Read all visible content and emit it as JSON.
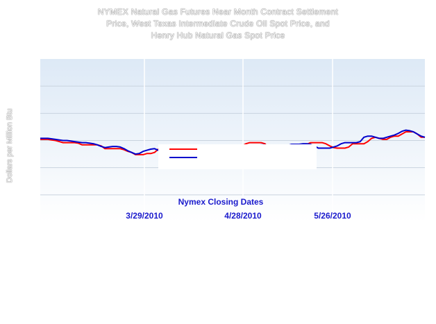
{
  "chart_data": {
    "type": "line",
    "title_lines": [
      "NYMEX Natural Gas Futures Near Month Contract Settlement",
      "Price, West Texas Intermediate Crude Oil Spot Price, and",
      "Henry Hub Natural Gas Spot Price"
    ],
    "xlabel": "Nymex Closing Dates",
    "ylabel": "Dollars per Million Btu",
    "x_tick_labels": [
      "3/29/2010",
      "4/28/2010",
      "5/26/2010"
    ],
    "ylim": [
      0,
      30
    ],
    "grid": true,
    "legend_placement": "center",
    "series": [
      {
        "name": "",
        "color": "#ff0000",
        "values": [
          15.2,
          15.2,
          15.2,
          15.1,
          15.0,
          14.8,
          14.6,
          14.6,
          14.6,
          14.6,
          14.5,
          14.2,
          14.2,
          14.2,
          14.2,
          14.2,
          14.0,
          13.5,
          13.5,
          13.5,
          13.5,
          13.5,
          13.3,
          13.0,
          12.8,
          12.4,
          12.4,
          12.4,
          12.6,
          12.6,
          12.8,
          13.4,
          13.5,
          13.6,
          13.6,
          13.8,
          13.4,
          13.4,
          13.8,
          14.0,
          14.0,
          14.0,
          13.8,
          13.6,
          13.6,
          14.0,
          14.0,
          13.9,
          13.8,
          13.8,
          13.6,
          13.6,
          13.8,
          14.0,
          14.4,
          14.6,
          14.6,
          14.6,
          14.6,
          14.4,
          13.6,
          13.4,
          13.4,
          13.6,
          13.6,
          13.6,
          13.6,
          13.7,
          13.8,
          14.0,
          14.3,
          14.6,
          14.6,
          14.6,
          14.6,
          14.4,
          14.0,
          13.7,
          13.6,
          13.6,
          13.6,
          13.8,
          14.4,
          14.4,
          14.4,
          14.4,
          14.8,
          15.4,
          15.6,
          15.4,
          15.2,
          15.2,
          15.6,
          15.8,
          15.8,
          16.2,
          16.6,
          16.6,
          16.6,
          16.2,
          15.6,
          15.6
        ]
      },
      {
        "name": "",
        "color": "#0000cc",
        "values": [
          15.4,
          15.4,
          15.4,
          15.3,
          15.2,
          15.1,
          15.0,
          15.0,
          14.9,
          14.8,
          14.7,
          14.6,
          14.6,
          14.5,
          14.4,
          14.2,
          13.9,
          13.7,
          13.8,
          13.9,
          13.9,
          13.8,
          13.5,
          13.1,
          12.8,
          12.5,
          12.6,
          13.0,
          13.2,
          13.4,
          13.5,
          13.2,
          13.1,
          13.1,
          13.3,
          13.6,
          13.4,
          13.4,
          13.4,
          13.6,
          13.6,
          13.5,
          13.4,
          13.4,
          13.6,
          13.8,
          14.0,
          14.1,
          14.1,
          14.0,
          13.6,
          13.5,
          13.5,
          13.6,
          13.7,
          13.8,
          13.9,
          14.1,
          14.2,
          14.2,
          13.8,
          13.6,
          13.7,
          13.8,
          13.9,
          14.1,
          14.3,
          14.3,
          14.3,
          14.4,
          14.4,
          14.3,
          14.0,
          13.6,
          13.6,
          13.6,
          13.6,
          13.8,
          14.0,
          14.4,
          14.6,
          14.6,
          14.6,
          14.6,
          14.8,
          15.6,
          15.8,
          15.8,
          15.6,
          15.4,
          15.4,
          15.6,
          15.8,
          16.0,
          16.3,
          16.7,
          16.9,
          16.8,
          16.6,
          16.2,
          15.8,
          15.6
        ]
      }
    ]
  },
  "colors": {
    "plot_top": "#dde9f6",
    "plot_bottom": "#ffffff",
    "gridline": "#ffffff",
    "axis_text": "#1a1acc"
  }
}
